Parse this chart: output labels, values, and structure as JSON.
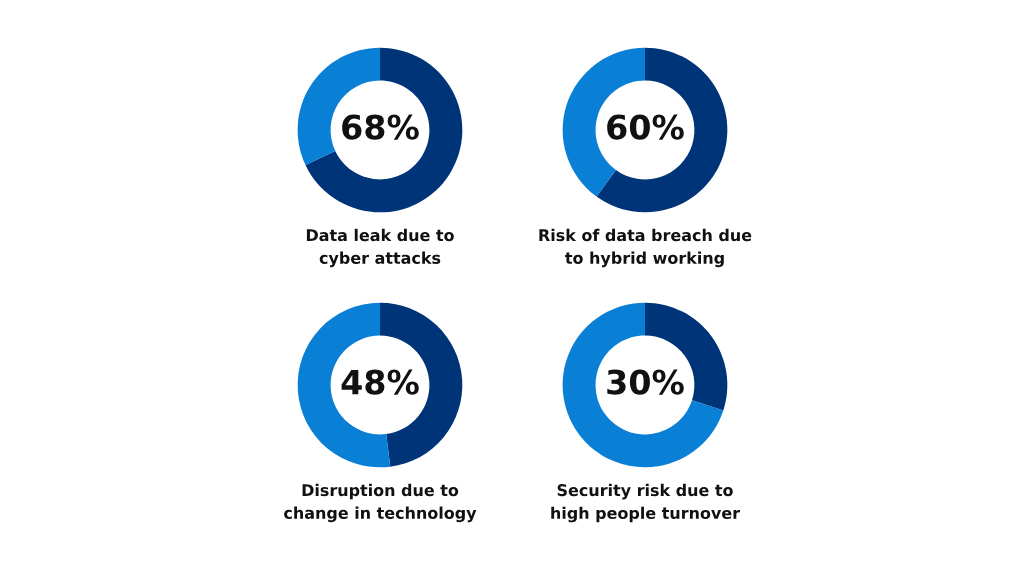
{
  "chart_data": [
    {
      "type": "donut",
      "title": "Data leak due to\ncyber attacks",
      "categories": [
        null,
        null
      ],
      "values": [
        68,
        32
      ],
      "colors": [
        "#003478",
        "#0a7fd6"
      ],
      "value_labels": [
        "68%",
        null
      ]
    },
    {
      "type": "donut",
      "title": "Risk of data breach due\nto hybrid working",
      "categories": [
        null,
        null
      ],
      "values": [
        60,
        40
      ],
      "colors": [
        "#003478",
        "#0a7fd6"
      ],
      "value_labels": [
        "60%",
        null
      ]
    },
    {
      "type": "donut",
      "title": "Disruption due to\nchange in technology",
      "categories": [
        null,
        null
      ],
      "values": [
        48,
        52
      ],
      "colors": [
        "#003478",
        "#0a7fd6"
      ],
      "value_labels": [
        "48%",
        null
      ]
    },
    {
      "type": "donut",
      "title": "Security risk due to\nhigh people turnover",
      "categories": [
        null,
        null
      ],
      "values": [
        30,
        70
      ],
      "colors": [
        "#003478",
        "#0a7fd6"
      ],
      "value_labels": [
        "30%",
        null
      ]
    }
  ]
}
